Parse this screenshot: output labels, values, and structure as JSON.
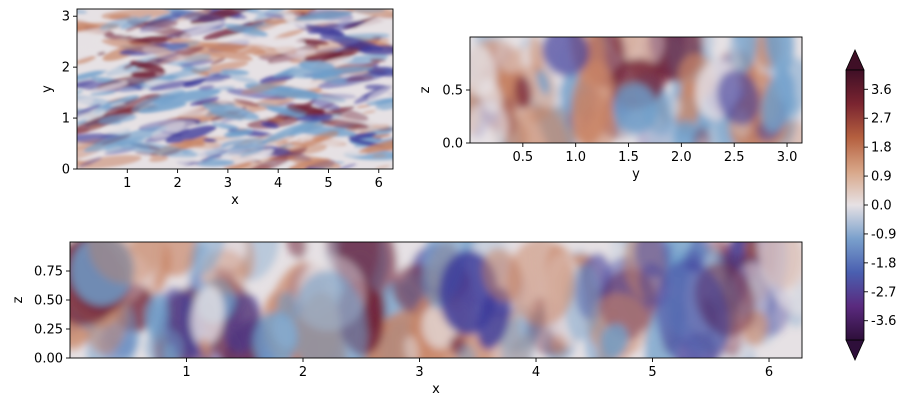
{
  "chart_data": [
    {
      "type": "heatmap",
      "panel": "top-left",
      "xlabel": "x",
      "ylabel": "y",
      "xlim": [
        0,
        6.283
      ],
      "ylim": [
        0,
        3.1416
      ],
      "xticks": [
        {
          "value": 1,
          "label": "1"
        },
        {
          "value": 2,
          "label": "2"
        },
        {
          "value": 3,
          "label": "3"
        },
        {
          "value": 4,
          "label": "4"
        },
        {
          "value": 5,
          "label": "5"
        },
        {
          "value": 6,
          "label": "6"
        }
      ],
      "yticks": [
        {
          "value": 0,
          "label": "0"
        },
        {
          "value": 1,
          "label": "1"
        },
        {
          "value": 2,
          "label": "2"
        },
        {
          "value": 3,
          "label": "3"
        }
      ],
      "grid": false
    },
    {
      "type": "heatmap",
      "panel": "top-right",
      "xlabel": "y",
      "ylabel": "z",
      "xlim": [
        0,
        3.1416
      ],
      "ylim": [
        0,
        1
      ],
      "xticks": [
        {
          "value": 0.5,
          "label": "0.5"
        },
        {
          "value": 1.0,
          "label": "1.0"
        },
        {
          "value": 1.5,
          "label": "1.5"
        },
        {
          "value": 2.0,
          "label": "2.0"
        },
        {
          "value": 2.5,
          "label": "2.5"
        },
        {
          "value": 3.0,
          "label": "3.0"
        }
      ],
      "yticks": [
        {
          "value": 0.0,
          "label": "0.0"
        },
        {
          "value": 0.5,
          "label": "0.5"
        }
      ],
      "grid": false
    },
    {
      "type": "heatmap",
      "panel": "bottom",
      "xlabel": "x",
      "ylabel": "z",
      "xlim": [
        0,
        6.283
      ],
      "ylim": [
        0,
        1
      ],
      "xticks": [
        {
          "value": 1,
          "label": "1"
        },
        {
          "value": 2,
          "label": "2"
        },
        {
          "value": 3,
          "label": "3"
        },
        {
          "value": 4,
          "label": "4"
        },
        {
          "value": 5,
          "label": "5"
        },
        {
          "value": 6,
          "label": "6"
        }
      ],
      "yticks": [
        {
          "value": 0.0,
          "label": "0.00"
        },
        {
          "value": 0.25,
          "label": "0.25"
        },
        {
          "value": 0.5,
          "label": "0.50"
        },
        {
          "value": 0.75,
          "label": "0.75"
        }
      ],
      "grid": false
    }
  ],
  "colorbar": {
    "colormap": "twilight-diverging",
    "vmin": -4.2,
    "vmax": 4.2,
    "extend": "both",
    "placement": "right",
    "ticks": [
      {
        "value": 3.6,
        "label": "3.6"
      },
      {
        "value": 2.7,
        "label": "2.7"
      },
      {
        "value": 1.8,
        "label": "1.8"
      },
      {
        "value": 0.9,
        "label": "0.9"
      },
      {
        "value": 0.0,
        "label": "0.0"
      },
      {
        "value": -0.9,
        "label": "-0.9"
      },
      {
        "value": -1.8,
        "label": "-1.8"
      },
      {
        "value": -2.7,
        "label": "-2.7"
      },
      {
        "value": -3.6,
        "label": "-3.6"
      }
    ],
    "colors": [
      "#2e0f3a",
      "#5a2a7e",
      "#4a5fb0",
      "#7aa0cc",
      "#e6e1e4",
      "#d8a688",
      "#b5603f",
      "#7a2430",
      "#3f0f26"
    ]
  },
  "colors": {
    "negative_strong": "#3d3a9a",
    "negative": "#6f9fcb",
    "neutral": "#e6e1e4",
    "positive": "#c88465",
    "positive_strong": "#6f1e35"
  }
}
